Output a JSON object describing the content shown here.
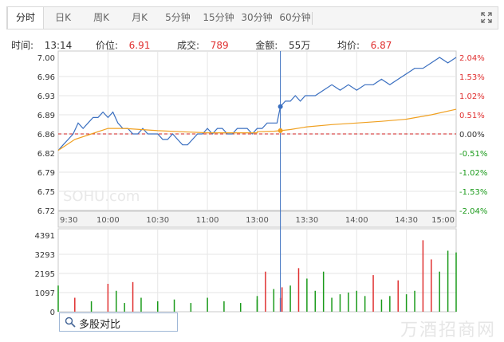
{
  "tabs": [
    {
      "label": "分时",
      "active": true
    },
    {
      "label": "日K",
      "active": false
    },
    {
      "label": "周K",
      "active": false
    },
    {
      "label": "月K",
      "active": false
    },
    {
      "label": "5分钟",
      "active": false
    },
    {
      "label": "15分钟",
      "active": false
    },
    {
      "label": "30分钟",
      "active": false
    },
    {
      "label": "60分钟",
      "active": false
    }
  ],
  "toolbar": {
    "expand_icon": "expand-icon"
  },
  "info": {
    "time_label": "时间:",
    "time": "13:14",
    "price_label": "价位:",
    "price": "6.91",
    "volume_label": "成交:",
    "volume": "789",
    "amount_label": "金额:",
    "amount": "55万",
    "avg_label": "均价:",
    "avg": "6.87"
  },
  "search": {
    "label": "多股对比",
    "icon": "search-icon"
  },
  "watermark_text": "万酒招商网",
  "chart_watermark": "SOHU.com",
  "colors": {
    "price_line": "#3a6fc0",
    "avg_line": "#f0a020",
    "up": "#e03030",
    "down": "#1a9a1a",
    "base_line": "#d02020",
    "crosshair": "#3a6fc0"
  },
  "chart_data": {
    "type": "line",
    "x_ticks": [
      "9:30",
      "10:00",
      "10:30",
      "11:00",
      "13:00",
      "13:30",
      "14:00",
      "14:30",
      "15:00"
    ],
    "y_left_ticks": [
      "7.00",
      "6.96",
      "6.93",
      "6.89",
      "6.86",
      "6.82",
      "6.79",
      "6.75",
      "6.72"
    ],
    "y_right_ticks": [
      "2.04%",
      "1.53%",
      "1.02%",
      "0.51%",
      "0.00%",
      "-0.51%",
      "-1.02%",
      "-1.53%",
      "-2.04%"
    ],
    "ylim": [
      6.72,
      7.0
    ],
    "base_price": 6.86,
    "volume_ticks": [
      "4391",
      "3293",
      "2195",
      "1097",
      "0"
    ],
    "volume_max": 4391,
    "cursor_time": "13:14",
    "series": [
      {
        "role": "price",
        "times": [
          "9:30",
          "9:33",
          "9:36",
          "9:39",
          "9:42",
          "9:45",
          "9:48",
          "9:51",
          "9:54",
          "9:57",
          "10:00",
          "10:03",
          "10:06",
          "10:09",
          "10:12",
          "10:15",
          "10:18",
          "10:21",
          "10:24",
          "10:27",
          "10:30",
          "10:33",
          "10:36",
          "10:39",
          "10:42",
          "10:45",
          "10:48",
          "10:51",
          "10:54",
          "10:57",
          "11:00",
          "11:03",
          "11:06",
          "11:09",
          "11:12",
          "11:15",
          "11:18",
          "11:21",
          "11:24",
          "11:27",
          "11:30",
          "13:00",
          "13:03",
          "13:06",
          "13:09",
          "13:12",
          "13:14",
          "13:17",
          "13:20",
          "13:23",
          "13:26",
          "13:29",
          "13:35",
          "13:40",
          "13:45",
          "13:50",
          "13:55",
          "14:00",
          "14:05",
          "14:10",
          "14:15",
          "14:20",
          "14:25",
          "14:30",
          "14:35",
          "14:40",
          "14:45",
          "14:50",
          "14:55",
          "15:00"
        ],
        "values": [
          6.83,
          6.84,
          6.85,
          6.86,
          6.88,
          6.87,
          6.88,
          6.89,
          6.89,
          6.9,
          6.89,
          6.9,
          6.88,
          6.87,
          6.87,
          6.86,
          6.86,
          6.87,
          6.86,
          6.86,
          6.86,
          6.85,
          6.85,
          6.86,
          6.85,
          6.84,
          6.84,
          6.85,
          6.86,
          6.86,
          6.87,
          6.86,
          6.87,
          6.87,
          6.86,
          6.86,
          6.87,
          6.87,
          6.87,
          6.86,
          6.87,
          6.87,
          6.87,
          6.88,
          6.88,
          6.88,
          6.91,
          6.92,
          6.92,
          6.93,
          6.92,
          6.93,
          6.93,
          6.94,
          6.95,
          6.94,
          6.95,
          6.94,
          6.95,
          6.95,
          6.96,
          6.95,
          6.96,
          6.97,
          6.98,
          6.98,
          6.99,
          7.0,
          6.99,
          7.0
        ]
      },
      {
        "role": "average",
        "times": [
          "9:30",
          "9:40",
          "9:50",
          "10:00",
          "10:10",
          "10:20",
          "10:30",
          "10:45",
          "11:00",
          "11:15",
          "11:30",
          "13:00",
          "13:10",
          "13:14",
          "13:20",
          "13:30",
          "13:45",
          "14:00",
          "14:15",
          "14:30",
          "14:45",
          "15:00"
        ],
        "values": [
          6.83,
          6.85,
          6.86,
          6.87,
          6.87,
          6.868,
          6.866,
          6.864,
          6.862,
          6.862,
          6.862,
          6.864,
          6.865,
          6.866,
          6.868,
          6.873,
          6.877,
          6.88,
          6.883,
          6.887,
          6.895,
          6.905
        ]
      }
    ],
    "volume": {
      "times": [
        "9:30",
        "9:40",
        "9:50",
        "10:00",
        "10:05",
        "10:10",
        "10:15",
        "10:20",
        "10:30",
        "10:40",
        "10:50",
        "11:00",
        "11:10",
        "11:20",
        "11:30",
        "13:00",
        "13:05",
        "13:10",
        "13:14",
        "13:15",
        "13:20",
        "13:25",
        "13:30",
        "13:35",
        "13:40",
        "13:45",
        "13:50",
        "13:55",
        "14:00",
        "14:05",
        "14:10",
        "14:15",
        "14:20",
        "14:25",
        "14:30",
        "14:35",
        "14:40",
        "14:45",
        "14:50",
        "14:55",
        "15:00"
      ],
      "values": [
        1500,
        800,
        600,
        1600,
        1200,
        500,
        1700,
        800,
        600,
        700,
        500,
        800,
        600,
        500,
        700,
        900,
        2300,
        1300,
        789,
        1400,
        1500,
        2500,
        1900,
        1200,
        2300,
        800,
        1000,
        1100,
        1200,
        900,
        2100,
        700,
        900,
        1800,
        1000,
        1200,
        4100,
        3000,
        2300,
        3500,
        3400
      ],
      "up": [
        false,
        true,
        false,
        true,
        false,
        false,
        true,
        false,
        false,
        false,
        false,
        false,
        false,
        false,
        false,
        false,
        true,
        false,
        true,
        true,
        false,
        true,
        false,
        false,
        false,
        false,
        false,
        false,
        false,
        false,
        true,
        false,
        false,
        true,
        false,
        false,
        true,
        true,
        false,
        false,
        false
      ]
    }
  }
}
